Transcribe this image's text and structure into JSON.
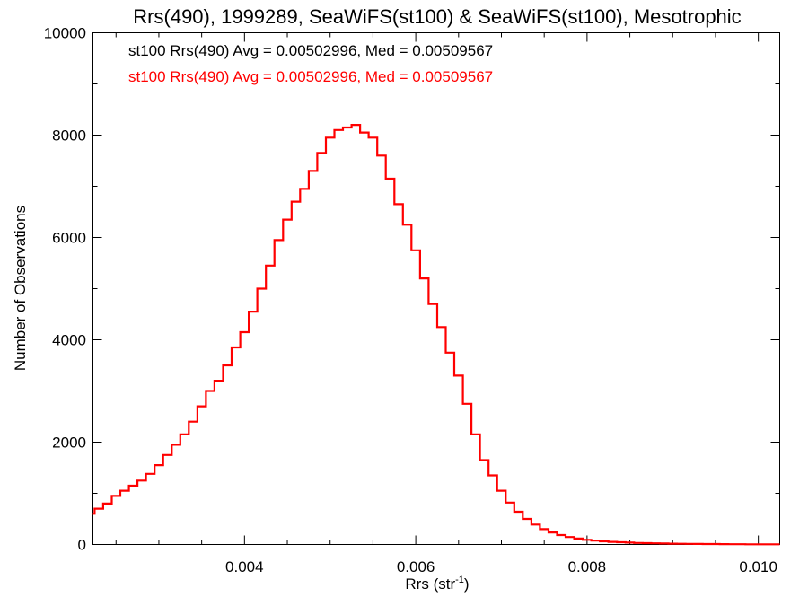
{
  "chart_data": {
    "type": "line",
    "title": "Rrs(490), 1999289, SeaWiFS(st100) & SeaWiFS(st100), Mesotrophic",
    "xlabel": "Rrs (str",
    "xlabel_sup": "-1",
    "xlabel_close": ")",
    "ylabel": "Number of Observations",
    "xlim": [
      0.00223,
      0.01025
    ],
    "ylim": [
      0,
      10000
    ],
    "x_ticks": [
      0.004,
      0.006,
      0.008,
      0.01
    ],
    "x_tick_labels": [
      "0.004",
      "0.006",
      "0.008",
      "0.010"
    ],
    "y_ticks": [
      0,
      2000,
      4000,
      6000,
      8000,
      10000
    ],
    "y_tick_labels": [
      "0",
      "2000",
      "4000",
      "6000",
      "8000",
      "10000"
    ],
    "grid": false,
    "legend_position": "top-left",
    "annotations": [
      {
        "text": "st100 Rrs(490) Avg = 0.00502996, Med = 0.00509567",
        "color": "#000000"
      },
      {
        "text": "st100 Rrs(490) Avg = 0.00502996, Med = 0.00509567",
        "color": "#ff0000"
      }
    ],
    "series": [
      {
        "color": "#ff0000",
        "x": [
          0.0022,
          0.0023,
          0.0024,
          0.0025,
          0.0026,
          0.0027,
          0.0028,
          0.0029,
          0.003,
          0.0031,
          0.0032,
          0.0033,
          0.0034,
          0.0035,
          0.0036,
          0.0037,
          0.0038,
          0.0039,
          0.004,
          0.0041,
          0.0042,
          0.0043,
          0.0044,
          0.0045,
          0.0046,
          0.0047,
          0.0048,
          0.0049,
          0.005,
          0.0051,
          0.0052,
          0.0053,
          0.0054,
          0.0055,
          0.0056,
          0.0057,
          0.0058,
          0.0059,
          0.006,
          0.0061,
          0.0062,
          0.0063,
          0.0064,
          0.0065,
          0.0066,
          0.0067,
          0.0068,
          0.0069,
          0.007,
          0.0071,
          0.0072,
          0.0073,
          0.0074,
          0.0075,
          0.0076,
          0.0077,
          0.0078,
          0.0079,
          0.008,
          0.0081,
          0.0082,
          0.0083,
          0.0084,
          0.0085,
          0.0086,
          0.0087,
          0.0088,
          0.0089,
          0.009,
          0.0091,
          0.0092,
          0.0093,
          0.0094,
          0.0095,
          0.0096,
          0.0097,
          0.0098,
          0.0099,
          0.01,
          0.0101,
          0.0102
        ],
        "values": [
          600,
          700,
          800,
          950,
          1050,
          1150,
          1250,
          1380,
          1550,
          1750,
          1950,
          2150,
          2400,
          2700,
          3000,
          3200,
          3500,
          3850,
          4150,
          4550,
          5000,
          5450,
          5950,
          6350,
          6700,
          6950,
          7300,
          7650,
          7950,
          8100,
          8150,
          8200,
          8050,
          7950,
          7600,
          7150,
          6650,
          6250,
          5750,
          5200,
          4700,
          4250,
          3750,
          3300,
          2750,
          2150,
          1650,
          1350,
          1050,
          820,
          640,
          500,
          390,
          300,
          235,
          185,
          145,
          115,
          92,
          75,
          62,
          51,
          43,
          36,
          30,
          26,
          22,
          19,
          16,
          14,
          12,
          11,
          9,
          8,
          7,
          6,
          5,
          4,
          4,
          3,
          3
        ]
      }
    ]
  }
}
